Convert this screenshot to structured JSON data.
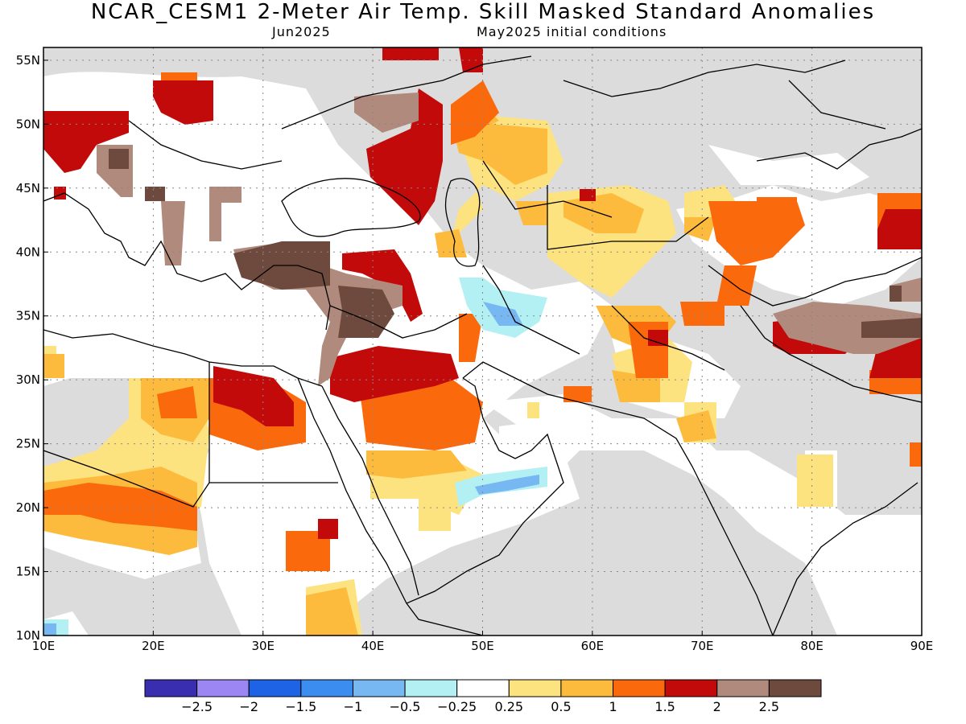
{
  "header": {
    "title": "NCAR_CESM1 2-Meter Air Temp. Skill Masked Standard Anomalies",
    "target_month": "Jun2025",
    "init": "May2025 initial conditions"
  },
  "axes": {
    "lon_labels": [
      "10E",
      "20E",
      "30E",
      "40E",
      "50E",
      "60E",
      "70E",
      "80E",
      "90E"
    ],
    "lat_labels": [
      "55N",
      "50N",
      "45N",
      "40N",
      "35N",
      "30N",
      "25N",
      "20N",
      "15N",
      "10N"
    ],
    "lon_range": [
      10,
      90
    ],
    "lat_range": [
      10,
      56
    ]
  },
  "colorbar": {
    "colors": [
      "#3a2eb0",
      "#9b86f4",
      "#1e63e6",
      "#3b8ef0",
      "#77b8f2",
      "#b3f0f3",
      "#ffffff",
      "#fde280",
      "#fdbb3e",
      "#fa6a0c",
      "#c20a0a",
      "#b08a7c",
      "#6e4a3e"
    ],
    "labels": [
      "−2.5",
      "−2",
      "−1.5",
      "−1",
      "−0.5",
      "−0.25",
      "0.25",
      "0.5",
      "1",
      "1.5",
      "2",
      "2.5"
    ]
  },
  "colors": {
    "masked": "#dcdcdc",
    "land_line": "#000000"
  }
}
